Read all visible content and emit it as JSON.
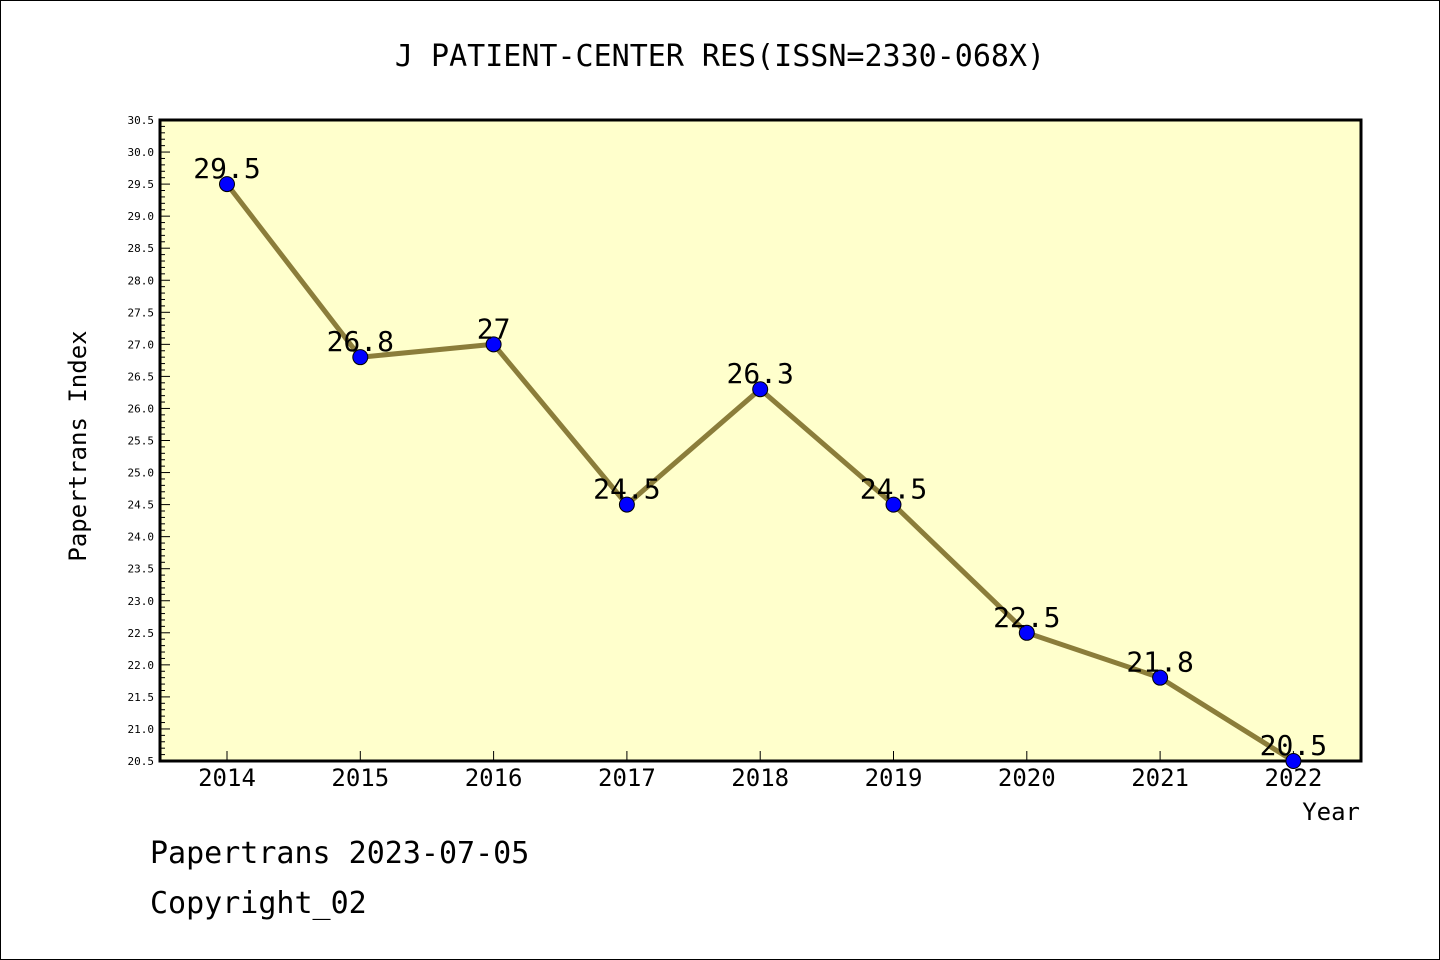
{
  "chart_data": {
    "type": "line",
    "title": "J PATIENT-CENTER RES(ISSN=2330-068X)",
    "xlabel": "Year",
    "ylabel": "Papertrans Index",
    "categories": [
      "2014",
      "2015",
      "2016",
      "2017",
      "2018",
      "2019",
      "2020",
      "2021",
      "2022"
    ],
    "values": [
      29.5,
      26.8,
      27,
      24.5,
      26.3,
      24.5,
      22.5,
      21.8,
      20.5
    ],
    "data_labels": [
      "29.5",
      "26.8",
      "27",
      "24.5",
      "26.3",
      "24.5",
      "22.5",
      "21.8",
      "20.5"
    ],
    "ylim": [
      20.5,
      30.5
    ],
    "yticks": [
      "20.5",
      "21.0",
      "21.5",
      "22.0",
      "22.5",
      "23.0",
      "23.5",
      "24.0",
      "24.5",
      "25.0",
      "25.5",
      "26.0",
      "26.5",
      "27.0",
      "27.5",
      "28.0",
      "28.5",
      "29.0",
      "29.5",
      "30.0",
      "30.5"
    ],
    "grid": false,
    "colors": {
      "plot_background": "#ffffcc",
      "line": "#8b7d3a",
      "marker": "#0000ff"
    }
  },
  "footer": {
    "source": "Papertrans 2023-07-05",
    "copyright": "Copyright_02"
  }
}
